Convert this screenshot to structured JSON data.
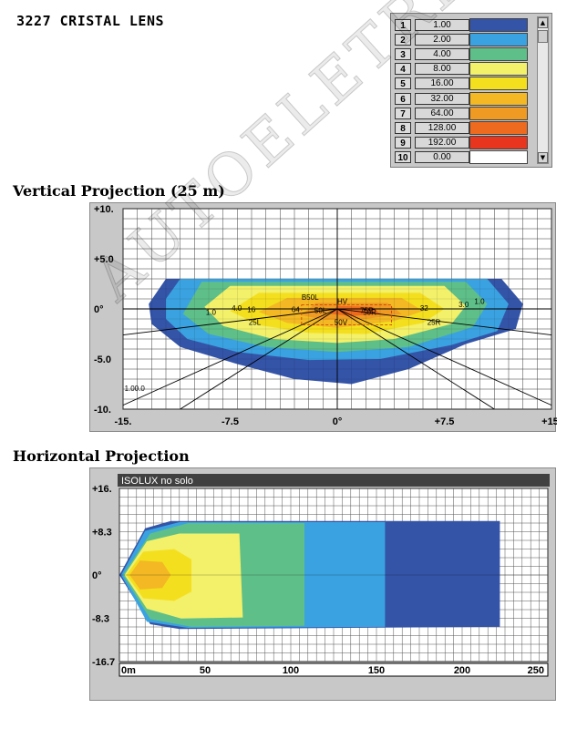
{
  "page": {
    "title": "3227 CRISTAL LENS",
    "vertical_title": "Vertical Projection (25 m)",
    "horizontal_title": "Horizontal Projection",
    "watermark": "AUTOELETRIC"
  },
  "legend": {
    "rows": [
      {
        "idx": "1",
        "value": "1.00",
        "color": "#3454a8"
      },
      {
        "idx": "2",
        "value": "2.00",
        "color": "#3aa2e0"
      },
      {
        "idx": "3",
        "value": "4.00",
        "color": "#5fbf88"
      },
      {
        "idx": "4",
        "value": "8.00",
        "color": "#f3f06a"
      },
      {
        "idx": "5",
        "value": "16.00",
        "color": "#f4df1e"
      },
      {
        "idx": "6",
        "value": "32.00",
        "color": "#f3b824"
      },
      {
        "idx": "7",
        "value": "64.00",
        "color": "#ef9a22"
      },
      {
        "idx": "8",
        "value": "128.00",
        "color": "#ee6a1e"
      },
      {
        "idx": "9",
        "value": "192.00",
        "color": "#e8351e"
      },
      {
        "idx": "10",
        "value": "0.00",
        "color": "#ffffff"
      }
    ],
    "scroll_up": "▲",
    "scroll_down": "▼"
  },
  "chart_data": [
    {
      "type": "heatmap",
      "title": "Vertical Projection (25 m)",
      "x_ticks": [
        "-15.",
        "-7.5",
        "0°",
        "+7.5",
        "+15."
      ],
      "y_ticks": [
        "+10.",
        "+5.0",
        "0°",
        "-5.0",
        "-10."
      ],
      "xlim": [
        -15,
        15
      ],
      "ylim": [
        -10,
        10
      ],
      "grid": true,
      "levels": [
        1,
        2,
        4,
        8,
        16,
        32,
        64,
        128,
        192
      ],
      "annotations": [
        "B50L",
        "HV",
        "75R",
        "50L",
        "50R",
        "50V",
        "25L",
        "25R",
        "1.0",
        "4.0",
        "16",
        "64",
        "32",
        "3.0",
        "1.0",
        "1.00.0"
      ]
    },
    {
      "type": "heatmap",
      "title": "Horizontal Projection",
      "panel_label": "ISOLUX  no solo",
      "x_ticks": [
        "0m",
        "50",
        "100",
        "150",
        "200",
        "250"
      ],
      "y_ticks": [
        "+16.",
        "+8.3",
        "0°",
        "-8.3",
        "-16.7"
      ],
      "xlim": [
        0,
        250
      ],
      "ylim": [
        -16.7,
        16.7
      ],
      "grid": true,
      "levels": [
        1,
        2,
        4,
        8,
        16,
        32
      ]
    }
  ]
}
